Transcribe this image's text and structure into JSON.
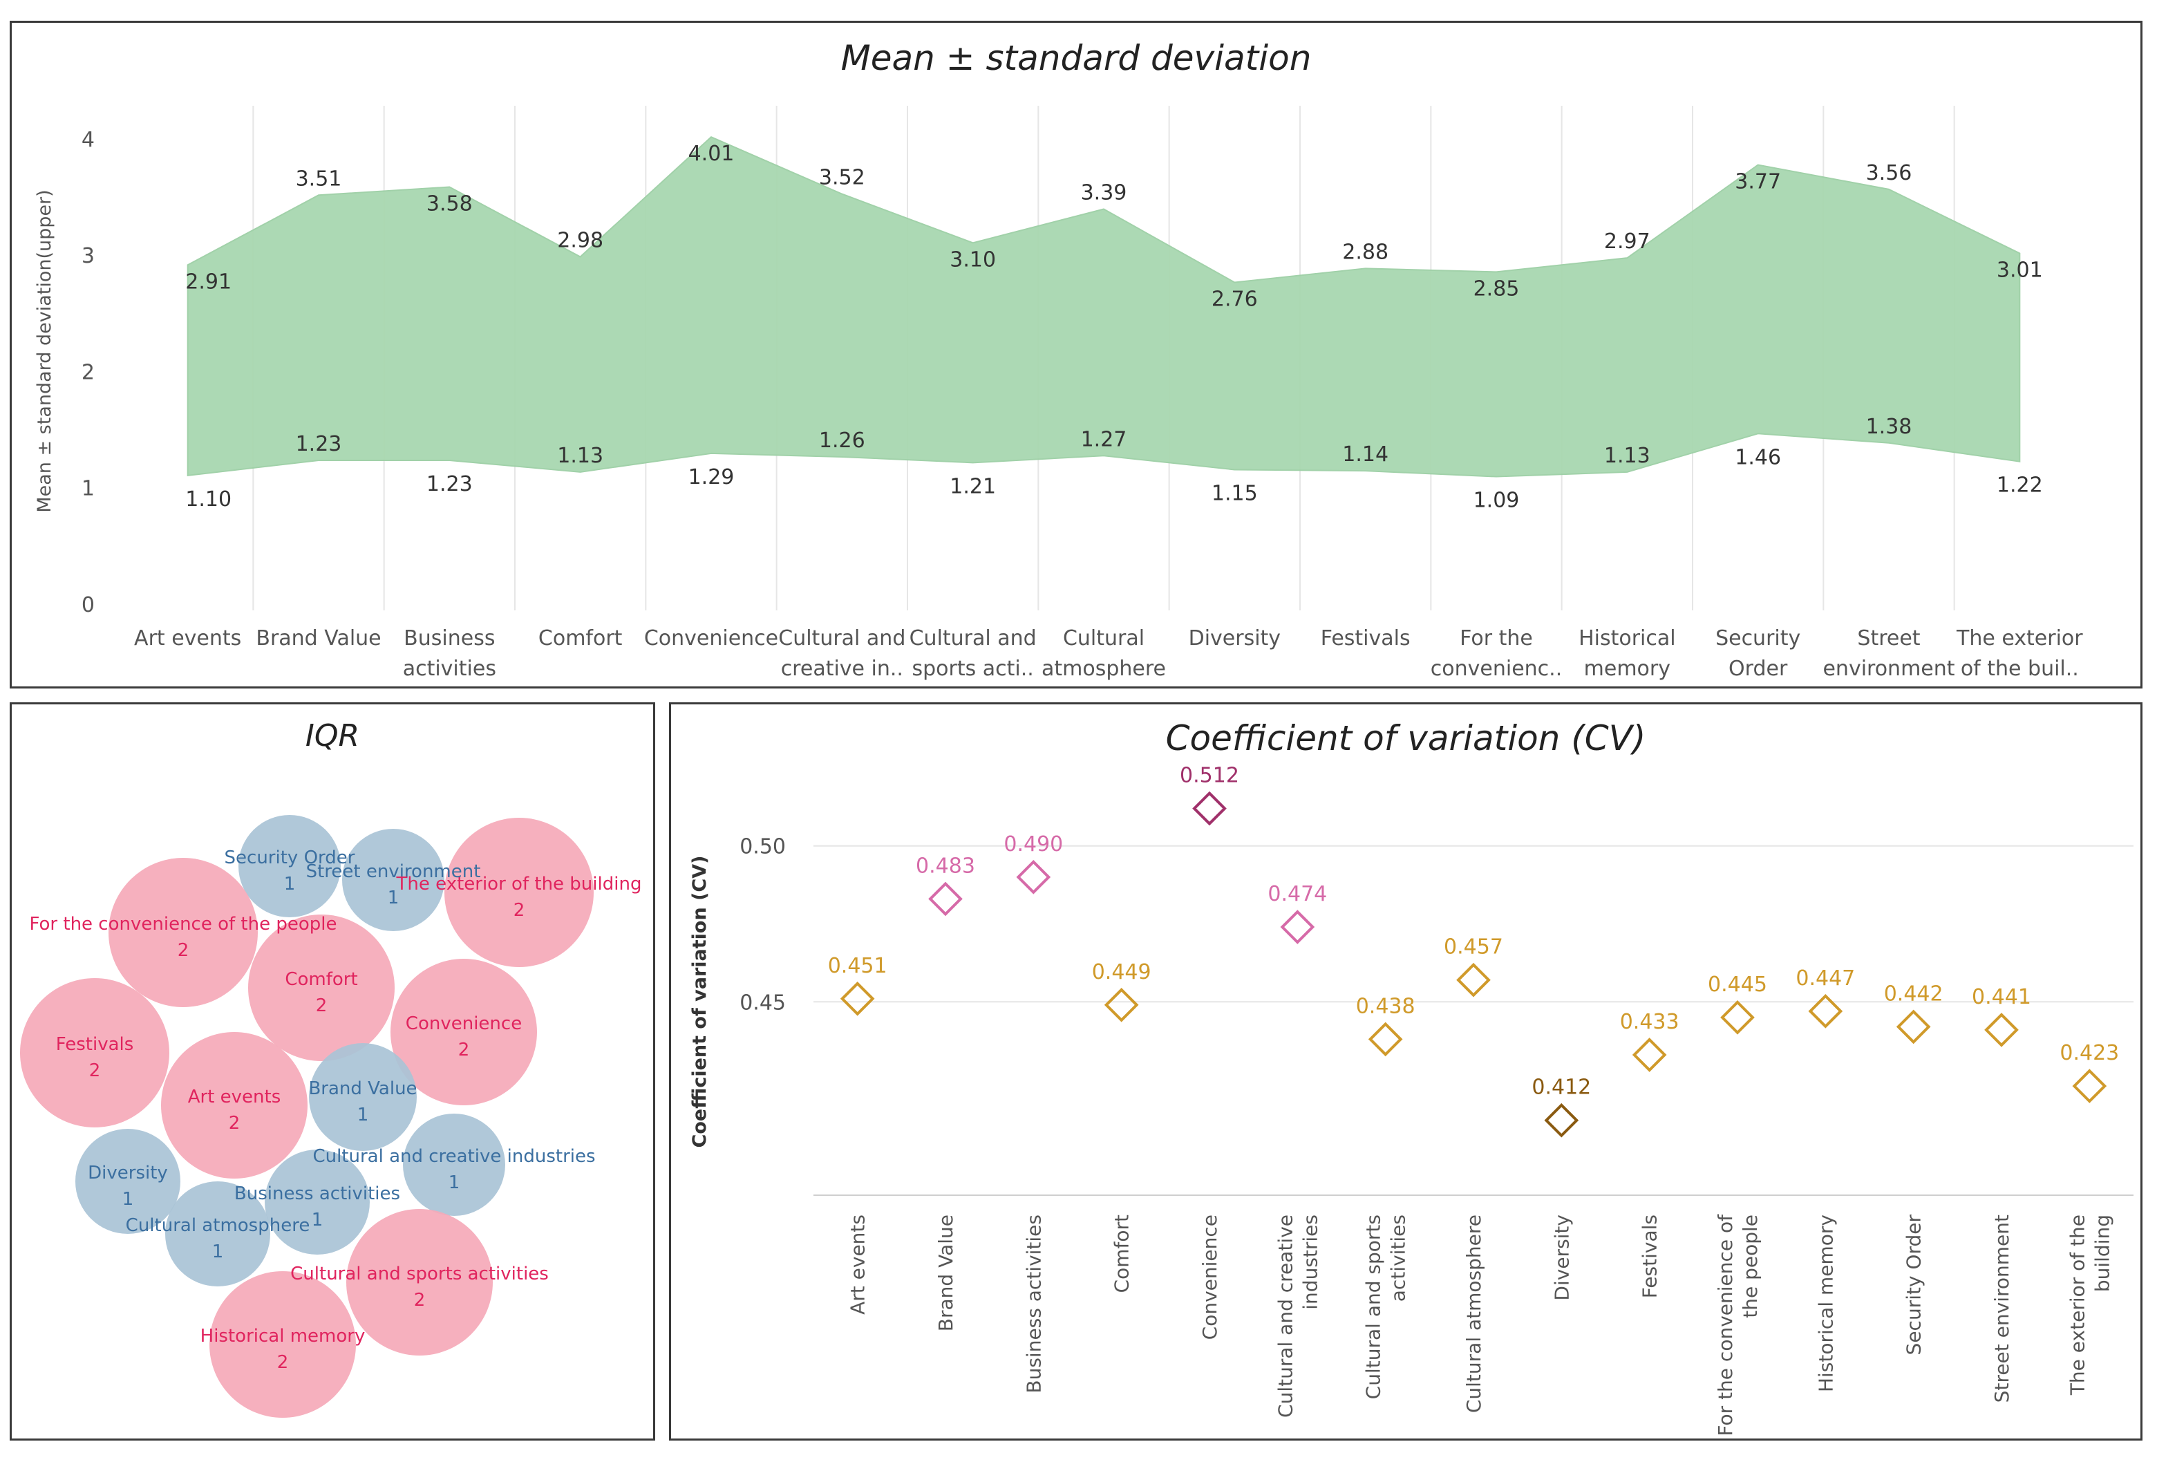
{
  "colors": {
    "band_fill": "#a8d8b0",
    "band_stroke": "#9ccfa5",
    "iqr_high": "#f5a9b8",
    "iqr_high_text": "#e0245e",
    "iqr_low": "#a9c3d6",
    "iqr_low_text": "#3b6fa0",
    "cv_orange": "#d09a2a",
    "cv_dark": "#8a5a10",
    "cv_pink": "#d66aa8",
    "cv_magenta": "#a0306a",
    "grid": "#e6e6e6",
    "axis_text": "#555555"
  },
  "chart_data": [
    {
      "id": "mean_sd",
      "type": "area",
      "title": "Mean ± standard deviation",
      "ylabel": "Mean ± standard deviation(upper)",
      "xlabel": "",
      "ylim": [
        0,
        4.1
      ],
      "yticks": [
        "0",
        "1",
        "2",
        "3",
        "4"
      ],
      "categories": [
        "Art events",
        "Brand Value",
        "Business activities",
        "Comfort",
        "Convenience",
        "Cultural and creative industries",
        "Cultural and sports activities",
        "Cultural atmosphere",
        "Diversity",
        "Festivals",
        "For the convenience of the people",
        "Historical memory",
        "Security Order",
        "Street environment",
        "The exterior of the building"
      ],
      "category_labels": [
        [
          "Art events"
        ],
        [
          "Brand Value"
        ],
        [
          "Business",
          "activities"
        ],
        [
          "Comfort"
        ],
        [
          "Convenience"
        ],
        [
          "Cultural and",
          "creative in.."
        ],
        [
          "Cultural and",
          "sports acti.."
        ],
        [
          "Cultural",
          "atmosphere"
        ],
        [
          "Diversity"
        ],
        [
          "Festivals"
        ],
        [
          "For the",
          "convenienc.."
        ],
        [
          "Historical",
          "memory"
        ],
        [
          "Security",
          "Order"
        ],
        [
          "Street",
          "environment"
        ],
        [
          "The exterior",
          "of the buil.."
        ]
      ],
      "series": [
        {
          "name": "upper",
          "values": [
            2.91,
            3.51,
            3.58,
            2.98,
            4.01,
            3.52,
            3.1,
            3.39,
            2.76,
            2.88,
            2.85,
            2.97,
            3.77,
            3.56,
            3.01
          ],
          "labels": [
            "2.91",
            "3.51",
            "3.58",
            "2.98",
            "4.01",
            "3.52",
            "3.10",
            "3.39",
            "2.76",
            "2.88",
            "2.85",
            "2.97",
            "3.77",
            "3.56",
            "3.01"
          ]
        },
        {
          "name": "lower",
          "values": [
            1.1,
            1.23,
            1.23,
            1.13,
            1.29,
            1.26,
            1.21,
            1.27,
            1.15,
            1.14,
            1.09,
            1.13,
            1.46,
            1.38,
            1.22
          ],
          "labels": [
            "1.10",
            "1.23",
            "1.23",
            "1.13",
            "1.29",
            "1.26",
            "1.21",
            "1.27",
            "1.15",
            "1.14",
            "1.09",
            "1.13",
            "1.46",
            "1.38",
            "1.22"
          ]
        }
      ]
    },
    {
      "id": "iqr",
      "type": "packed-bubble",
      "title": "IQR",
      "bubbles": [
        {
          "name": "Security Order",
          "value": "1",
          "group": "low"
        },
        {
          "name": "Street environment",
          "value": "1",
          "group": "low"
        },
        {
          "name": "The exterior of the building",
          "value": "2",
          "group": "high"
        },
        {
          "name": "For the convenience of the people",
          "value": "2",
          "group": "high"
        },
        {
          "name": "Comfort",
          "value": "2",
          "group": "high"
        },
        {
          "name": "Convenience",
          "value": "2",
          "group": "high"
        },
        {
          "name": "Festivals",
          "value": "2",
          "group": "high"
        },
        {
          "name": "Art events",
          "value": "2",
          "group": "high"
        },
        {
          "name": "Brand Value",
          "value": "1",
          "group": "low"
        },
        {
          "name": "Cultural and creative industries",
          "value": "1",
          "group": "low"
        },
        {
          "name": "Diversity",
          "value": "1",
          "group": "low"
        },
        {
          "name": "Business activities",
          "value": "1",
          "group": "low"
        },
        {
          "name": "Cultural atmosphere",
          "value": "1",
          "group": "low"
        },
        {
          "name": "Cultural and sports activities",
          "value": "2",
          "group": "high"
        },
        {
          "name": "Historical memory",
          "value": "2",
          "group": "high"
        }
      ]
    },
    {
      "id": "cv",
      "type": "scatter",
      "title": "Coefficient of variation (CV)",
      "ylabel": "Coefficient of variation (CV)",
      "xlabel": "",
      "ylim": [
        0.388,
        0.521
      ],
      "yticks": [
        0.45,
        0.5
      ],
      "ytick_labels": [
        "0.45",
        "0.50"
      ],
      "categories": [
        "Art events",
        "Brand Value",
        "Business activities",
        "Comfort",
        "Convenience",
        "Cultural and creative industries",
        "Cultural and sports activities",
        "Cultural atmosphere",
        "Diversity",
        "Festivals",
        "For the convenience of the people",
        "Historical memory",
        "Security Order",
        "Street environment",
        "The exterior of the building"
      ],
      "category_labels": [
        [
          "Art events"
        ],
        [
          "Brand Value"
        ],
        [
          "Business activities"
        ],
        [
          "Comfort"
        ],
        [
          "Convenience"
        ],
        [
          "Cultural and creative",
          "industries"
        ],
        [
          "Cultural and sports",
          "activities"
        ],
        [
          "Cultural atmosphere"
        ],
        [
          "Diversity"
        ],
        [
          "Festivals"
        ],
        [
          "For the convenience of",
          "the people"
        ],
        [
          "Historical memory"
        ],
        [
          "Security Order"
        ],
        [
          "Street environment"
        ],
        [
          "The exterior of the",
          "building"
        ]
      ],
      "values": [
        0.451,
        0.483,
        0.49,
        0.449,
        0.512,
        0.474,
        0.438,
        0.457,
        0.412,
        0.433,
        0.445,
        0.447,
        0.442,
        0.441,
        0.423
      ],
      "labels": [
        "0.451",
        "0.483",
        "0.490",
        "0.449",
        "0.512",
        "0.474",
        "0.438",
        "0.457",
        "0.412",
        "0.433",
        "0.445",
        "0.447",
        "0.442",
        "0.441",
        "0.423"
      ]
    }
  ]
}
